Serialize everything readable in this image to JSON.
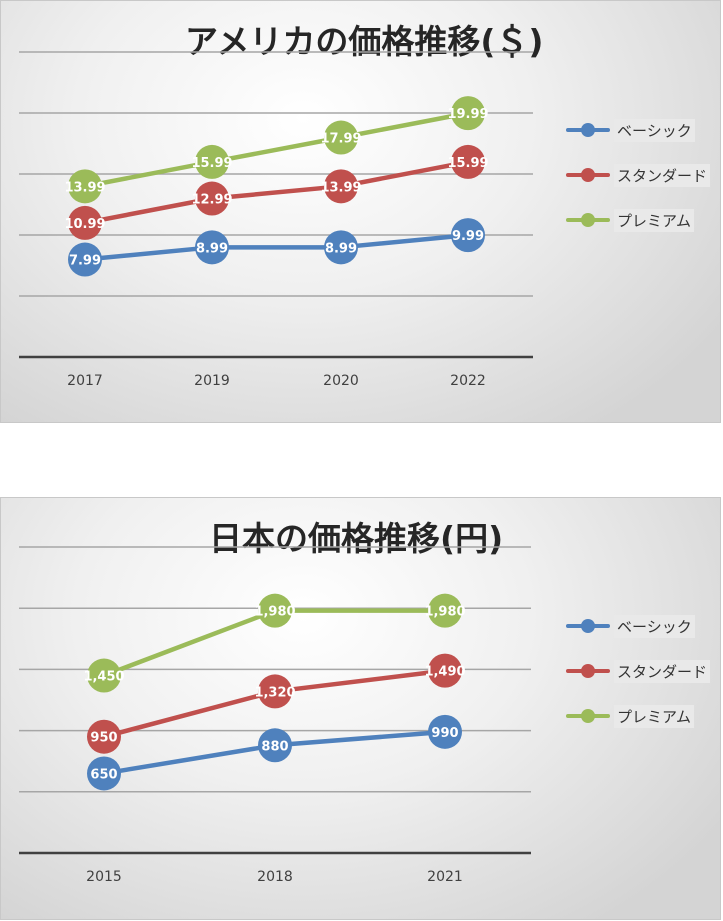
{
  "chart_data": [
    {
      "type": "line",
      "title": "アメリカの価格推移(＄)",
      "categories": [
        "2017",
        "2019",
        "2020",
        "2022"
      ],
      "series": [
        {
          "name": "ベーシック",
          "color": "#4f81bd",
          "values": [
            7.99,
            8.99,
            8.99,
            9.99
          ],
          "labels": [
            "7.99",
            "8.99",
            "8.99",
            "9.99"
          ]
        },
        {
          "name": "スタンダード",
          "color": "#c0504d",
          "values": [
            10.99,
            12.99,
            13.99,
            15.99
          ],
          "labels": [
            "10.99",
            "12.99",
            "13.99",
            "15.99"
          ]
        },
        {
          "name": "プレミアム",
          "color": "#9bbb59",
          "values": [
            13.99,
            15.99,
            17.99,
            19.99
          ],
          "labels": [
            "13.99",
            "15.99",
            "17.99",
            "19.99"
          ]
        }
      ],
      "ylim": [
        0,
        25
      ],
      "grid": true,
      "legend": "right"
    },
    {
      "type": "line",
      "title": "日本の価格推移(円)",
      "categories": [
        "2015",
        "2018",
        "2021"
      ],
      "series": [
        {
          "name": "ベーシック",
          "color": "#4f81bd",
          "values": [
            650,
            880,
            990
          ],
          "labels": [
            "650",
            "880",
            "990"
          ]
        },
        {
          "name": "スタンダード",
          "color": "#c0504d",
          "values": [
            950,
            1320,
            1490
          ],
          "labels": [
            "950",
            "1,320",
            "1,490"
          ]
        },
        {
          "name": "プレミアム",
          "color": "#9bbb59",
          "values": [
            1450,
            1980,
            1980
          ],
          "labels": [
            "1,450",
            "1,980",
            "1,980"
          ]
        }
      ],
      "ylim": [
        0,
        2500
      ],
      "grid": true,
      "legend": "right"
    }
  ]
}
